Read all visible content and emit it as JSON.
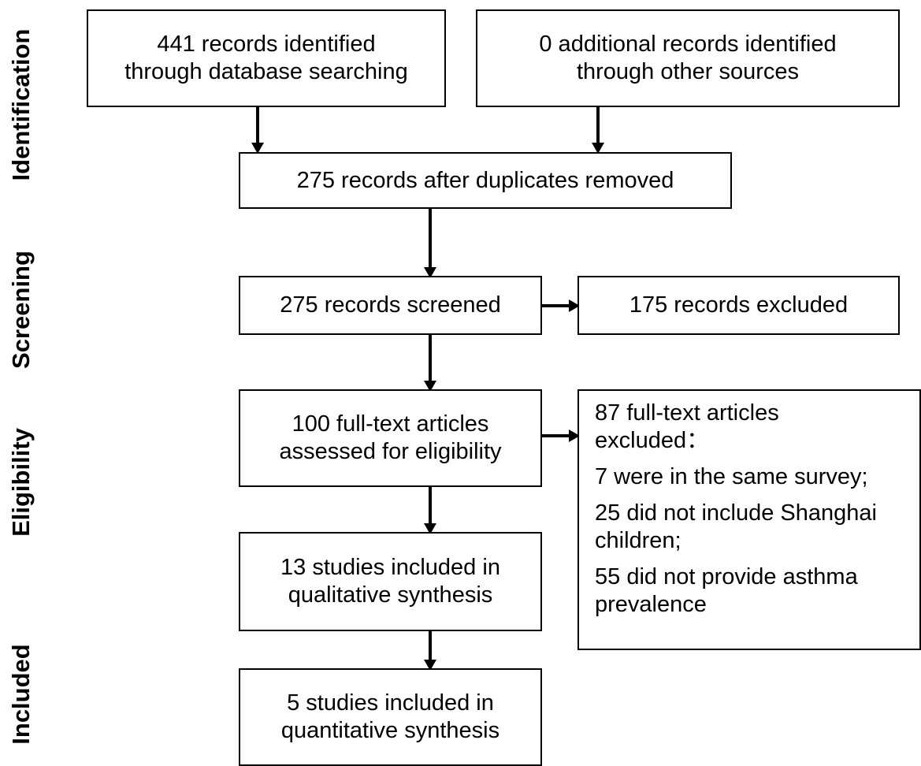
{
  "phases": {
    "identification": "Identification",
    "screening": "Screening",
    "eligibility": "Eligibility",
    "included": "Included"
  },
  "boxes": {
    "database_records": {
      "line1": "441 records identified",
      "line2": "through database searching"
    },
    "other_records": {
      "line1": "0 additional records identified",
      "line2": "through other sources"
    },
    "after_duplicates": {
      "line1": "275 records after duplicates removed"
    },
    "screened": {
      "line1": "275 records screened"
    },
    "excluded": {
      "line1": "175 records excluded"
    },
    "full_text": {
      "line1": "100 full-text articles",
      "line2": "assessed for eligibility"
    },
    "full_text_excluded": {
      "heading_line1": "87 full-text articles",
      "heading_line2": "excluded：",
      "reason1": "7 were in the same survey;",
      "reason2_line1": "25 did not include Shanghai",
      "reason2_line2": "children;",
      "reason3_line1": "55 did not provide asthma",
      "reason3_line2": "prevalence"
    },
    "qualitative": {
      "line1": "13 studies included in",
      "line2": "qualitative synthesis"
    },
    "quantitative": {
      "line1": "5 studies included in",
      "line2": "quantitative synthesis"
    }
  }
}
